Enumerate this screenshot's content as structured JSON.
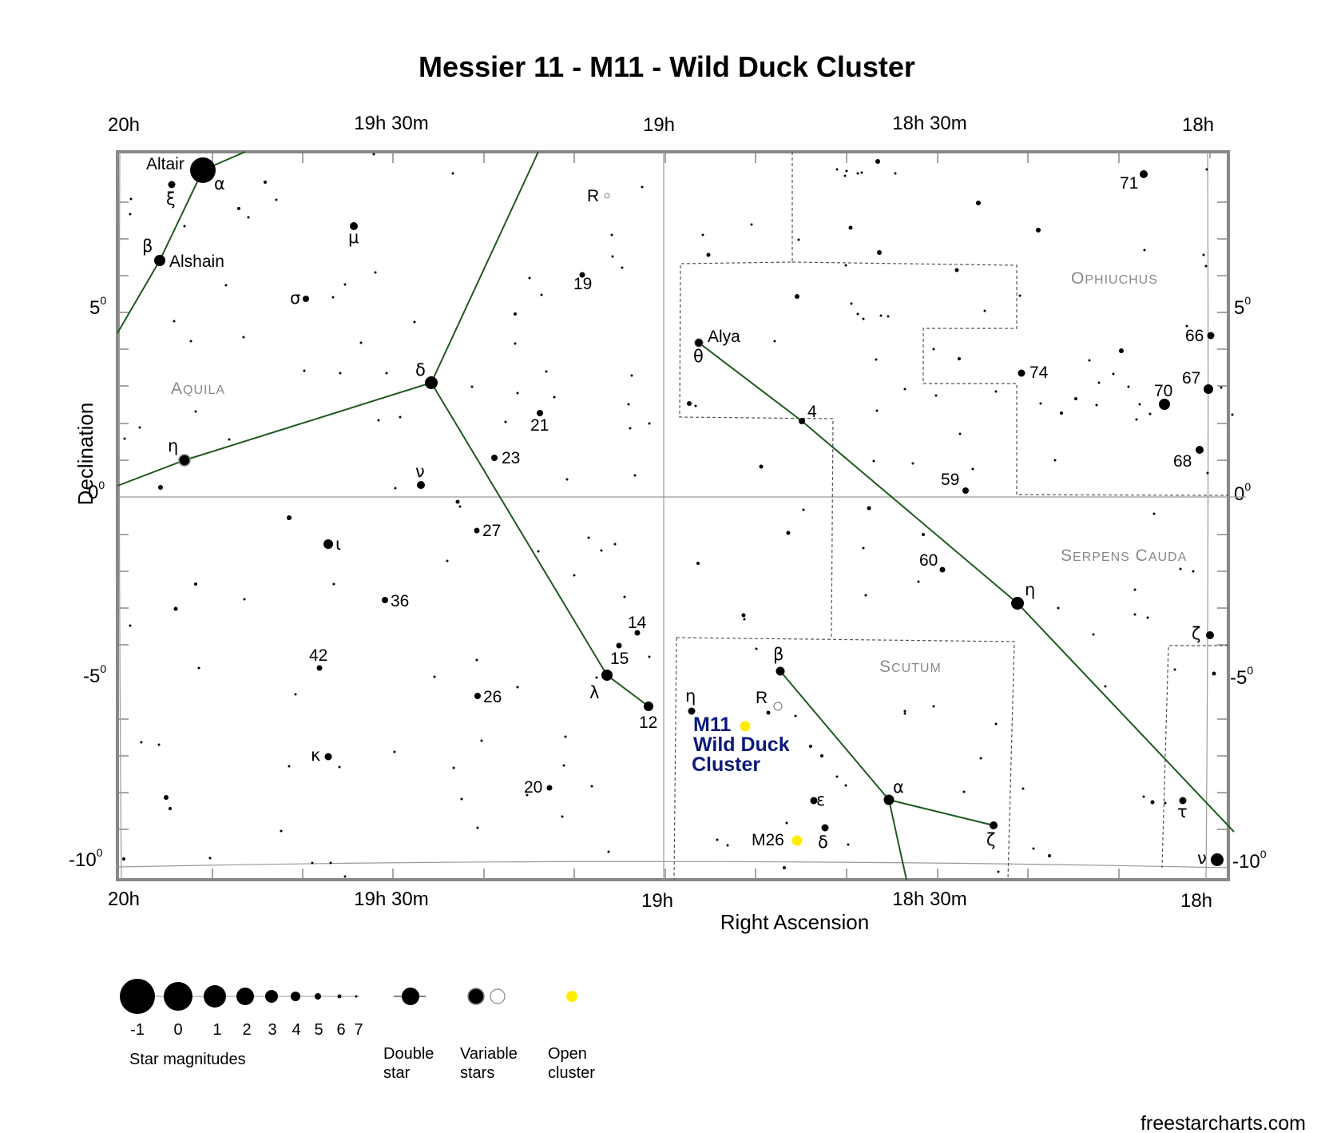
{
  "title": "Messier 11 - M11 - Wild Duck Cluster",
  "axes": {
    "ra_ticks": [
      "20h",
      "19h 30m",
      "19h",
      "18h 30m",
      "18h"
    ],
    "dec_ticks": {
      "p5": "5",
      "zero": "0",
      "m5": "-5",
      "m10": "-10",
      "deg": "0"
    },
    "xlabel": "Right Ascension",
    "ylabel": "Declination"
  },
  "constellations": [
    "Aquila",
    "Ophiuchus",
    "Serpens Cauda",
    "Scutum"
  ],
  "target": {
    "line1": "M11",
    "line2": "Wild Duck",
    "line3": "Cluster",
    "color": "#0a1a7a",
    "marker_color": "#ffee00"
  },
  "other_objects": {
    "m26": "M26"
  },
  "star_labels": {
    "altair": "Altair",
    "alpha_aql": "α",
    "xi": "ξ",
    "beta_aql": "β",
    "alshain": "Alshain",
    "mu": "μ",
    "sigma": "σ",
    "delta_aql": "δ",
    "eta_aql": "η",
    "nu_aql": "ν",
    "iota": "ι",
    "n36": "36",
    "n42": "42",
    "kappa": "κ",
    "n26": "26",
    "n20": "20",
    "n27": "27",
    "n23": "23",
    "n21": "21",
    "n19": "19",
    "r_aql": "R",
    "lambda": "λ",
    "n12": "12",
    "n15": "15",
    "n14": "14",
    "alya": "Alya",
    "theta": "θ",
    "n4": "4",
    "n59": "59",
    "n60": "60",
    "eta_ser": "η",
    "n74": "74",
    "n71": "71",
    "n66": "66",
    "n67": "67",
    "n70": "70",
    "n68": "68",
    "zeta_oph": "ζ",
    "tau": "τ",
    "nu_oph": "ν",
    "beta_sct": "β",
    "r_sct": "R",
    "eta_sct": "η",
    "alpha_sct": "α",
    "epsilon": "ε",
    "delta_sct": "δ",
    "zeta_sct": "ζ"
  },
  "legend": {
    "magnitudes": [
      "-1",
      "0",
      "1",
      "2",
      "3",
      "4",
      "5",
      "6",
      "7"
    ],
    "magnitudes_label": "Star magnitudes",
    "double_star": [
      "Double",
      "star"
    ],
    "variable_stars": [
      "Variable",
      "stars"
    ],
    "open_cluster": [
      "Open",
      "cluster"
    ]
  },
  "credit": "freestarcharts.com",
  "colors": {
    "figure_lines": "#1e5a1e",
    "frame": "#888888",
    "grid": "#999999",
    "open_cluster": "#ffee00"
  }
}
